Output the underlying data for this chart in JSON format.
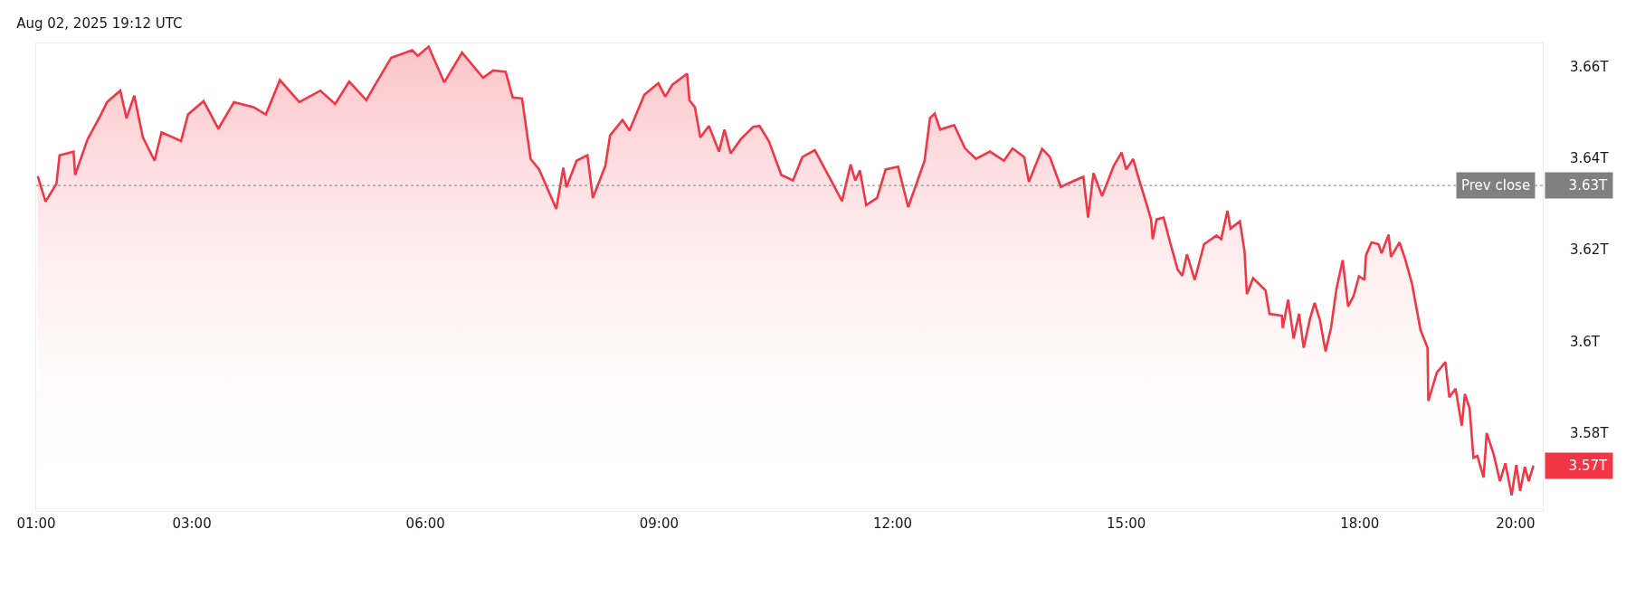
{
  "chart_data": {
    "type": "area",
    "title": "Aug 02, 2025 19:12 UTC",
    "series": [
      {
        "color": "#f23645",
        "x": [
          1.02,
          1.12,
          1.26,
          1.3,
          1.48,
          1.5,
          1.66,
          1.82,
          1.91,
          2.08,
          2.16,
          2.26,
          2.37,
          2.52,
          2.61,
          2.86,
          2.95,
          3.15,
          3.34,
          3.54,
          3.79,
          3.95,
          4.13,
          4.38,
          4.65,
          4.84,
          5.02,
          5.24,
          5.33,
          5.56,
          5.83,
          5.9,
          6.04,
          6.24,
          6.47,
          6.74,
          6.87,
          7.03,
          7.12,
          7.24,
          7.35,
          7.46,
          7.68,
          7.77,
          7.81,
          7.94,
          8.08,
          8.15,
          8.31,
          8.37,
          8.53,
          8.62,
          8.81,
          8.99,
          9.08,
          9.17,
          9.36,
          9.39,
          9.46,
          9.53,
          9.64,
          9.77,
          9.84,
          9.92,
          10.05,
          10.21,
          10.29,
          10.41,
          10.57,
          10.72,
          10.84,
          11.0,
          11.21,
          11.35,
          11.46,
          11.52,
          11.58,
          11.66,
          11.8,
          11.91,
          12.07,
          12.2,
          12.41,
          12.48,
          12.54,
          12.61,
          12.79,
          12.93,
          13.07,
          13.25,
          13.43,
          13.54,
          13.69,
          13.75,
          13.92,
          14.02,
          14.16,
          14.34,
          14.45,
          14.51,
          14.58,
          14.69,
          14.84,
          14.94,
          15.0,
          15.09,
          15.14,
          15.23,
          15.32,
          15.34,
          15.39,
          15.48,
          15.57,
          15.66,
          15.72,
          15.78,
          15.88,
          16.0,
          16.16,
          16.22,
          16.3,
          16.34,
          16.46,
          16.52,
          16.55,
          16.63,
          16.79,
          16.84,
          17.0,
          17.01,
          17.08,
          17.15,
          17.22,
          17.28,
          17.36,
          17.42,
          17.49,
          17.56,
          17.63,
          17.7,
          17.78,
          17.85,
          17.92,
          17.99,
          18.06,
          18.08,
          18.15,
          18.24,
          18.28,
          18.37,
          18.4,
          18.51,
          18.58,
          18.67,
          18.78,
          18.87,
          18.88,
          18.99,
          19.1,
          19.15,
          19.23,
          19.31,
          19.35,
          19.41,
          19.46,
          19.51,
          19.59,
          19.63,
          19.72,
          19.8,
          19.87,
          19.95,
          20.01,
          20.06,
          20.12,
          20.17,
          20.23
        ],
        "values": [
          3.636,
          3.6305,
          3.6344,
          3.6406,
          3.6414,
          3.6363,
          3.6441,
          3.6491,
          3.6522,
          3.6547,
          3.6487,
          3.6536,
          3.6445,
          3.6394,
          3.6456,
          3.6437,
          3.6495,
          3.6524,
          3.6464,
          3.6522,
          3.6511,
          3.6495,
          3.657,
          3.6522,
          3.6547,
          3.6518,
          3.6567,
          3.6526,
          3.6553,
          3.6619,
          3.6635,
          3.6623,
          3.6643,
          3.6565,
          3.663,
          3.6575,
          3.6591,
          3.6588,
          3.6532,
          3.653,
          3.6398,
          3.6375,
          3.6289,
          3.6379,
          3.6336,
          3.6394,
          3.6406,
          3.6313,
          3.6383,
          3.6449,
          3.6483,
          3.646,
          3.6538,
          3.6563,
          3.6534,
          3.656,
          3.6584,
          3.6526,
          3.6511,
          3.6445,
          3.647,
          3.6414,
          3.6462,
          3.641,
          3.6441,
          3.6468,
          3.647,
          3.6437,
          3.6363,
          3.6351,
          3.6402,
          3.6417,
          3.6351,
          3.6306,
          3.6386,
          3.6351,
          3.6373,
          3.6297,
          3.6313,
          3.6375,
          3.6381,
          3.6293,
          3.6394,
          3.6487,
          3.6497,
          3.6462,
          3.6472,
          3.6421,
          3.6398,
          3.6414,
          3.6394,
          3.6421,
          3.6402,
          3.6348,
          3.642,
          3.6402,
          3.6337,
          3.6351,
          3.6359,
          3.627,
          3.6367,
          3.6317,
          3.6383,
          3.6412,
          3.6375,
          3.6398,
          3.6367,
          3.6317,
          3.6266,
          3.6223,
          3.6266,
          3.627,
          3.6212,
          3.6157,
          3.6143,
          3.619,
          3.6134,
          3.6212,
          3.6231,
          3.6223,
          3.6285,
          3.6246,
          3.6262,
          3.6196,
          3.6103,
          3.6138,
          3.6111,
          3.606,
          3.6056,
          3.6029,
          3.6091,
          3.6006,
          3.606,
          3.5986,
          3.6049,
          3.6084,
          3.6045,
          3.5978,
          3.6029,
          3.6114,
          3.6177,
          3.6076,
          3.6099,
          3.6142,
          3.6134,
          3.6188,
          3.6216,
          3.6212,
          3.6192,
          3.6233,
          3.6184,
          3.6216,
          3.6181,
          3.6126,
          3.6025,
          3.5986,
          3.587,
          3.5932,
          3.5955,
          3.5878,
          3.5897,
          3.5816,
          3.5885,
          3.5854,
          3.5746,
          3.575,
          3.5703,
          3.58,
          3.5753,
          3.5695,
          3.5734,
          3.5664,
          3.573,
          3.5674,
          3.5726,
          3.5695,
          3.5729
        ]
      }
    ],
    "xlim": [
      1.0,
      20.35
    ],
    "xticks": [
      {
        "value": 1,
        "label": "01:00"
      },
      {
        "value": 3,
        "label": "03:00"
      },
      {
        "value": 6,
        "label": "06:00"
      },
      {
        "value": 9,
        "label": "09:00"
      },
      {
        "value": 12,
        "label": "12:00"
      },
      {
        "value": 15,
        "label": "15:00"
      },
      {
        "value": 18,
        "label": "18:00"
      },
      {
        "value": 20,
        "label": "20:00"
      }
    ],
    "ylim": [
      3.563,
      3.665
    ],
    "yticks": [
      {
        "value": 3.58,
        "label": "3.58T"
      },
      {
        "value": 3.6,
        "label": "3.6T"
      },
      {
        "value": 3.62,
        "label": "3.62T"
      },
      {
        "value": 3.64,
        "label": "3.64T"
      },
      {
        "value": 3.66,
        "label": "3.66T"
      }
    ],
    "ref_lines": [
      {
        "axis": "y",
        "value": 3.634,
        "label": "Prev close",
        "color": "#808080",
        "line_style": "dotted"
      }
    ],
    "annotations": [
      "3.63T",
      "3.57T"
    ]
  }
}
